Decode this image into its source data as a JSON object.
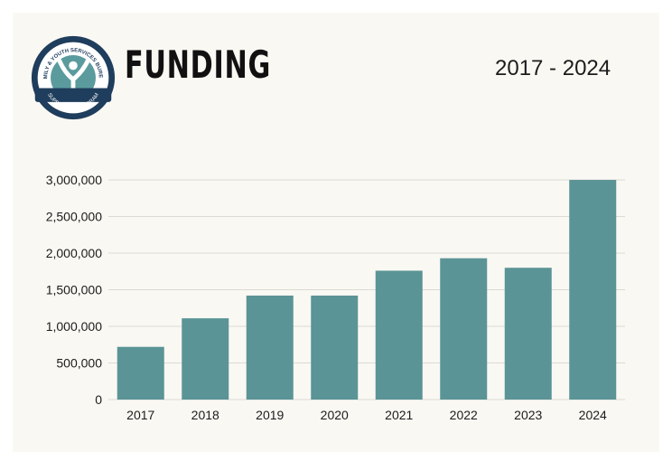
{
  "header": {
    "title": "FUNDING",
    "year_range": "2017 - 2024",
    "logo": {
      "top_text": "FAMILY & YOUTH SERVICES BUREAU",
      "bottom_text": "SUPPORTED PROGRAM",
      "ring_color": "#1f3d5c",
      "accent_color": "#5b9b9e"
    }
  },
  "chart_data": {
    "type": "bar",
    "categories": [
      "2017",
      "2018",
      "2019",
      "2020",
      "2021",
      "2022",
      "2023",
      "2024"
    ],
    "values": [
      720000,
      1110000,
      1420000,
      1420000,
      1760000,
      1930000,
      1800000,
      3000000
    ],
    "ylim": [
      0,
      3000000
    ],
    "yticks": [
      0,
      500000,
      1000000,
      1500000,
      2000000,
      2500000,
      3000000
    ],
    "ytick_labels": [
      "0",
      "500,000",
      "1,000,000",
      "1,500,000",
      "2,000,000",
      "2,500,000",
      "3,000,000"
    ],
    "grid": true,
    "bar_color": "#5b9496",
    "grid_color": "#dcdad5"
  }
}
